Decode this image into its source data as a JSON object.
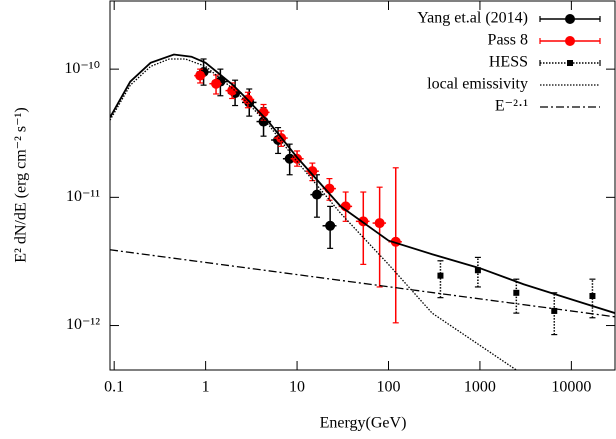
{
  "chart_data": {
    "type": "line",
    "xlabel": "Energy(GeV)",
    "ylabel": "E² dN/dE (erg cm⁻² s⁻¹)",
    "xscale": "log",
    "yscale": "log",
    "xlim": [
      0.09,
      30000
    ],
    "ylim": [
      4.5e-13,
      3.4e-10
    ],
    "xticks": [
      0.1,
      1,
      10,
      100,
      1000,
      10000
    ],
    "yticks": [
      {
        "value": 1e-10,
        "label": "10⁻¹⁰"
      },
      {
        "value": 1e-11,
        "label": "10⁻¹¹"
      },
      {
        "value": 1e-12,
        "label": "10⁻¹²"
      }
    ],
    "legend": "upper right",
    "series": [
      {
        "name": "Yang et.al (2014)",
        "color": "#000000",
        "style": "points",
        "x": [
          0.95,
          1.45,
          2.1,
          3.0,
          4.3,
          6.2,
          8.3,
          16.5,
          23
        ],
        "values": [
          9.5e-11,
          8e-11,
          6.5e-11,
          5.5e-11,
          3.9e-11,
          2.8e-11,
          2e-11,
          1.05e-11,
          6e-12
        ],
        "ylow": [
          7.5e-11,
          6.2e-11,
          5.2e-11,
          4.3e-11,
          3e-11,
          2.2e-11,
          1.5e-11,
          7e-12,
          4e-12
        ],
        "yhigh": [
          1.2e-10,
          1e-10,
          8.2e-11,
          7e-11,
          5e-11,
          3.5e-11,
          2.6e-11,
          1.5e-11,
          8.5e-12
        ],
        "xlow": [
          0.8,
          1.2,
          1.75,
          2.5,
          3.6,
          5.2,
          7.0,
          14,
          19
        ],
        "xhigh": [
          1.15,
          1.75,
          2.5,
          3.6,
          5.2,
          7.4,
          10,
          19.5,
          27
        ]
      },
      {
        "name": "Pass 8",
        "color": "#ff0000",
        "style": "points",
        "x": [
          0.87,
          1.3,
          1.95,
          2.9,
          4.3,
          6.7,
          10,
          14.7,
          22.6,
          34,
          53,
          80,
          120
        ],
        "values": [
          8.9e-11,
          7.7e-11,
          6.8e-11,
          5.8e-11,
          4.6e-11,
          2.9e-11,
          2e-11,
          1.6e-11,
          1.17e-11,
          8.5e-12,
          6.5e-12,
          6.3e-12,
          4.5e-12
        ],
        "ylow": [
          7.8e-11,
          6.4e-11,
          5.9e-11,
          5e-11,
          4e-11,
          2.5e-11,
          1.75e-11,
          1.35e-11,
          9.5e-12,
          6.5e-12,
          3e-12,
          2e-12,
          1.05e-12
        ],
        "yhigh": [
          1e-10,
          9e-11,
          7.8e-11,
          6.6e-11,
          5.3e-11,
          3.3e-11,
          2.3e-11,
          1.85e-11,
          1.4e-11,
          1.1e-11,
          1.1e-11,
          1.2e-11,
          1.7e-11
        ],
        "xlow": [
          0.75,
          1.1,
          1.65,
          2.45,
          3.65,
          5.6,
          8.5,
          12.5,
          19,
          28.5,
          44,
          67,
          100
        ],
        "xhigh": [
          1.0,
          1.5,
          2.25,
          3.4,
          5.0,
          7.9,
          11.8,
          17.3,
          26.6,
          40,
          62,
          94,
          140
        ]
      },
      {
        "name": "HESS",
        "color": "#000000",
        "style": "squares",
        "x": [
          370,
          950,
          2500,
          6500,
          17000
        ],
        "values": [
          2.45e-12,
          2.7e-12,
          1.8e-12,
          1.3e-12,
          1.7e-12
        ],
        "ylow": [
          1.65e-12,
          2e-12,
          1.25e-12,
          8.5e-13,
          1.15e-12
        ],
        "yhigh": [
          3.2e-12,
          3.4e-12,
          2.3e-12,
          1.8e-12,
          2.3e-12
        ]
      },
      {
        "name": "local emissivity",
        "color": "#000000",
        "style": "line",
        "dash": "dotted",
        "x": [
          0.09,
          0.15,
          0.25,
          0.4,
          0.6,
          1,
          2,
          3,
          5,
          10,
          30,
          100,
          300,
          1000,
          2500
        ],
        "values": [
          4e-11,
          7.5e-11,
          1.05e-10,
          1.2e-10,
          1.2e-10,
          1.05e-10,
          7e-11,
          5.3e-11,
          3.6e-11,
          1.9e-11,
          7.5e-12,
          3e-12,
          1.25e-12,
          7e-13,
          4.5e-13
        ]
      },
      {
        "name": "E⁻²·¹",
        "color": "#000000",
        "style": "line",
        "dash": "dashdot",
        "x": [
          0.09,
          30000
        ],
        "values": [
          3.9e-12,
          1.17e-12
        ]
      },
      {
        "color": "#000000",
        "style": "line",
        "dash": "solid",
        "x": [
          0.09,
          0.15,
          0.25,
          0.45,
          0.7,
          1,
          2,
          3,
          5,
          10,
          30,
          100,
          300,
          1000,
          3000,
          10000,
          30000
        ],
        "values": [
          4.2e-11,
          8e-11,
          1.12e-10,
          1.3e-10,
          1.25e-10,
          1.12e-10,
          7.5e-11,
          5.6e-11,
          3.8e-11,
          2.05e-11,
          8.5e-12,
          4.6e-12,
          3.6e-12,
          2.8e-12,
          2.1e-12,
          1.6e-12,
          1.25e-12
        ]
      }
    ]
  }
}
